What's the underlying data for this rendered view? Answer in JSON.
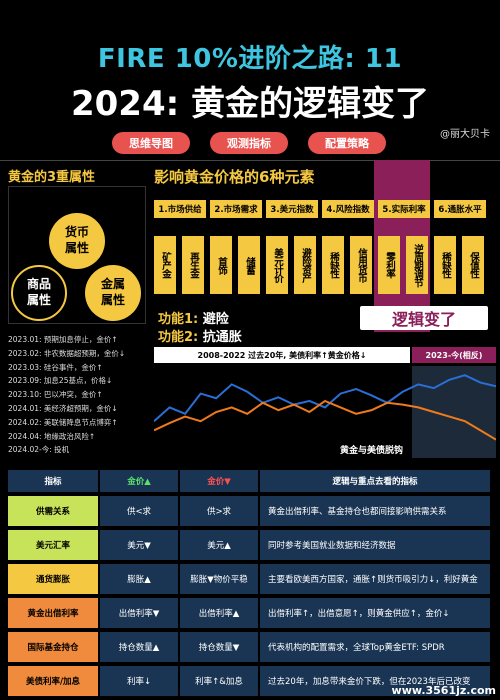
{
  "header": {
    "title_line1": "FIRE 10%进阶之路: 11",
    "title_line2": "2024: 黄金的逻辑变了",
    "author": "@丽大贝卡",
    "buttons": [
      "思维导图",
      "观测指标",
      "配置策略"
    ]
  },
  "left": {
    "heading": "黄金的3重属性",
    "circles": [
      "货币\n属性",
      "商品\n属性",
      "金属\n属性"
    ],
    "events": [
      "2023.01: 预期加息停止，金价↑",
      "2023.02: 非农数据超预期，金价↓",
      "2023.03: 硅谷事件，金价↑",
      "2023.09: 加息25基点，价格↓",
      "2023.10: 巴以冲突，金价↑",
      "2024.01: 美经济超预期，金价↓",
      "2024.02: 美联储降息节点博弈↑",
      "2024.04: 地缘政治风险↑",
      "2024.02-今: 投机"
    ]
  },
  "right": {
    "heading": "影响黄金价格的6种元素",
    "factors": [
      "1.市场供给",
      "2.市场需求",
      "3.美元指数",
      "4.风险指数",
      "5.实际利率",
      "6.通胀水平"
    ],
    "subs": [
      "矿产金",
      "再生金",
      "首饰",
      "储蓄",
      "美元计价",
      "避险资产",
      "稀缺性",
      "信用货币",
      "零利率",
      "逆周期调节",
      "稀缺性",
      "保值性"
    ],
    "func1_key": "功能1:",
    "func1_val": "避险",
    "func2_key": "功能2:",
    "func2_val": "抗通胀",
    "logic_changed": "逻辑变了",
    "chart_left_label": "2008-2022 过去20年, 美债利率↑黄金价格↓",
    "chart_right_label": "2023-今(相反)",
    "chart_caption": "黄金与美债脱钩"
  },
  "table": {
    "headers": [
      "指标",
      "金价▲",
      "金价▼",
      "逻辑与重点去看的指标"
    ],
    "rows": [
      {
        "name": "供需关系",
        "up": "供<求",
        "down": "供>求",
        "logic": "黄金出借利率、基金持仓也都间接影响供需关系",
        "color": "green"
      },
      {
        "name": "美元汇率",
        "up": "美元▼",
        "down": "美元▲",
        "logic": "同时参考美国就业数据和经济数据",
        "color": "green"
      },
      {
        "name": "通货膨胀",
        "up": "膨胀▲",
        "down": "膨胀▼物价平稳",
        "logic": "主要看欧美西方国家，通胀↑则货币吸引力↓，利好黄金",
        "color": "yellow"
      },
      {
        "name": "黄金出借利率",
        "up": "出借利率▼",
        "down": "出借利率▲",
        "logic": "出借利率↑，出借意愿↑，则黄金供应↑，金价↓",
        "color": "orange"
      },
      {
        "name": "国际基金持仓",
        "up": "持仓数量▲",
        "down": "持仓数量▼",
        "logic": "代表机构的配置需求，全球Top黄金ETF: SPDR",
        "color": "orange"
      },
      {
        "name": "美债利率/加息",
        "up": "利率↓",
        "down": "利率↑&加息",
        "logic": "过去20年，加息带来金价下跌，但在2023年后已改变",
        "color": "orange"
      }
    ]
  },
  "watermark": "www.3561jz.com",
  "chart_data": {
    "type": "line",
    "title": "",
    "series": [
      {
        "name": "",
        "color": "#2a6fd6",
        "values": [
          40,
          55,
          48,
          70,
          65,
          80,
          72,
          60,
          66,
          58,
          62,
          55,
          70,
          75,
          68,
          60,
          72,
          80,
          76,
          85,
          90,
          82,
          78
        ]
      },
      {
        "name": "",
        "color": "#f07a1c",
        "values": [
          30,
          38,
          45,
          40,
          50,
          55,
          48,
          60,
          52,
          58,
          50,
          62,
          55,
          48,
          52,
          60,
          58,
          55,
          50,
          45,
          40,
          30,
          20
        ]
      }
    ]
  }
}
